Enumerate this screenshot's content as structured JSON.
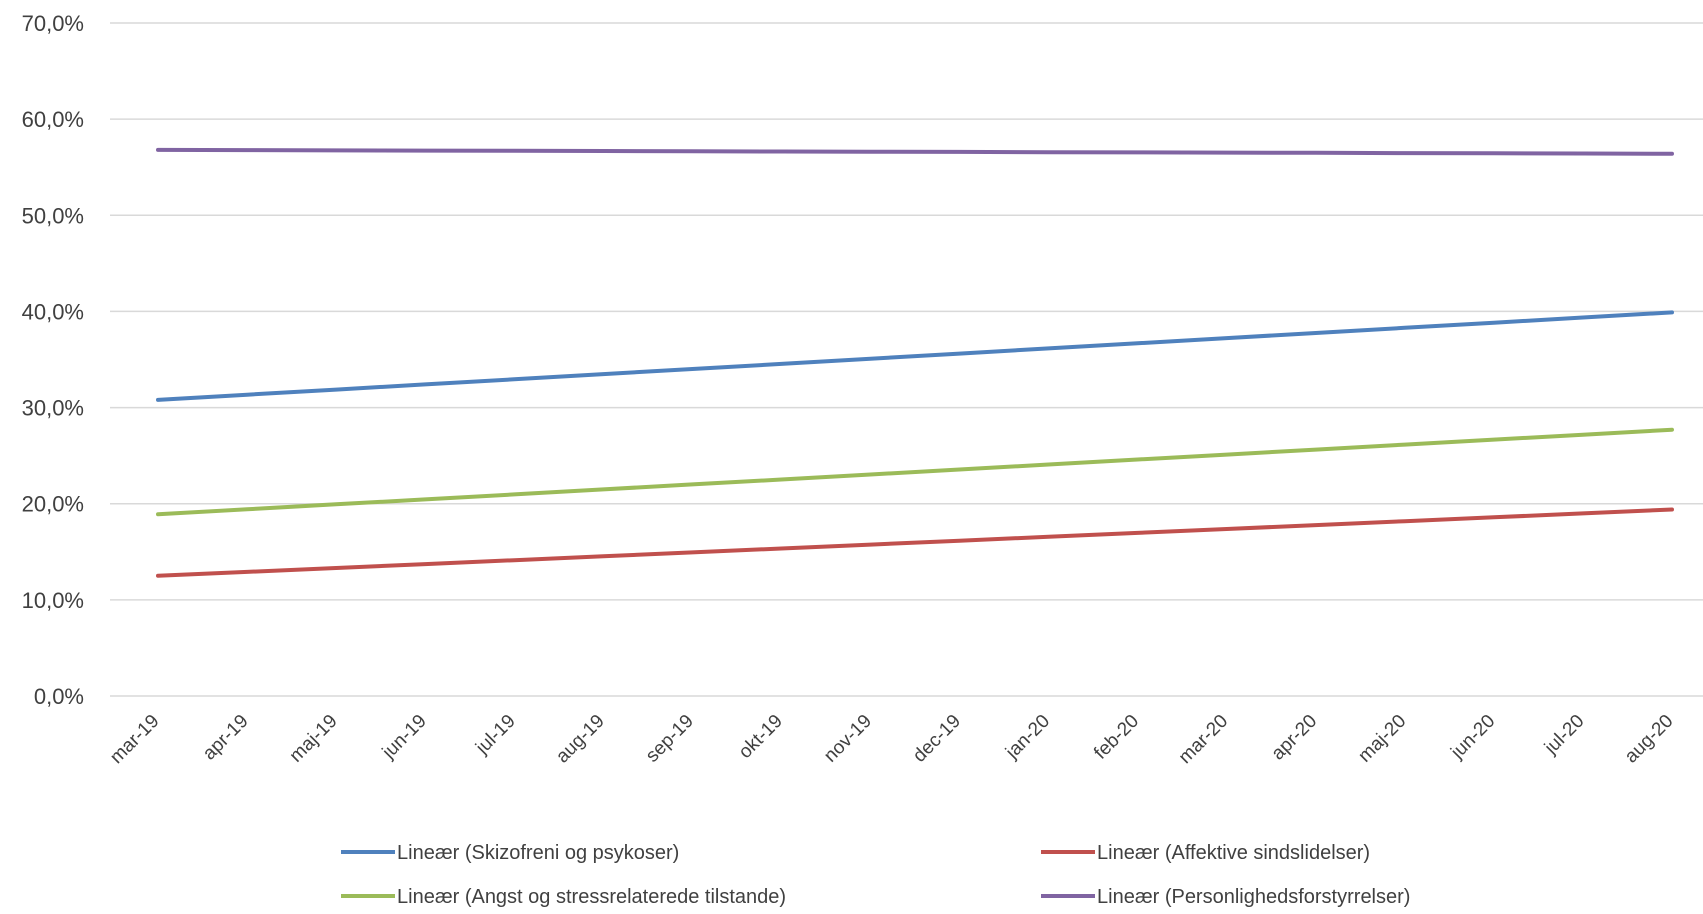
{
  "chart_data": {
    "type": "line",
    "categories": [
      "mar-19",
      "apr-19",
      "maj-19",
      "jun-19",
      "jul-19",
      "aug-19",
      "sep-19",
      "okt-19",
      "nov-19",
      "dec-19",
      "jan-20",
      "feb-20",
      "mar-20",
      "apr-20",
      "maj-20",
      "jun-20",
      "jul-20",
      "aug-20"
    ],
    "y_ticks": [
      "0,0%",
      "10,0%",
      "20,0%",
      "30,0%",
      "40,0%",
      "50,0%",
      "60,0%",
      "70,0%"
    ],
    "ylim": [
      0,
      70
    ],
    "grid": true,
    "legend_position": "bottom",
    "series": [
      {
        "name": "Lineær (Skizofreni og psykoser)",
        "color": "#4F81BD",
        "start": 30.8,
        "end": 39.9
      },
      {
        "name": "Lineær (Affektive sindslidelser)",
        "color": "#C0504D",
        "start": 12.5,
        "end": 19.4
      },
      {
        "name": "Lineær (Angst og stressrelaterede tilstande)",
        "color": "#9BBB59",
        "start": 18.9,
        "end": 27.7
      },
      {
        "name": "Lineær (Personlighedsforstyrrelser)",
        "color": "#8064A2",
        "start": 56.8,
        "end": 56.4
      }
    ]
  }
}
